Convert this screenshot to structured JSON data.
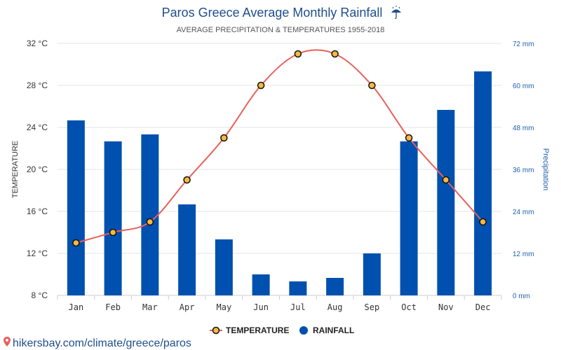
{
  "chart_data": {
    "type": "bar",
    "title": "Paros Greece Average Monthly Rainfall",
    "title_icon": "umbrella-icon",
    "subtitle": "AVERAGE PRECIPITATION & TEMPERATURES 1955-2018",
    "categories": [
      "Jan",
      "Feb",
      "Mar",
      "Apr",
      "May",
      "Jun",
      "Jul",
      "Aug",
      "Sep",
      "Oct",
      "Nov",
      "Dec"
    ],
    "series": [
      {
        "name": "TEMPERATURE",
        "type": "line",
        "axis": "left",
        "color": "#e8605a",
        "values": [
          13,
          14,
          15,
          19,
          23,
          28,
          31,
          31,
          28,
          23,
          19,
          15
        ]
      },
      {
        "name": "RAINFALL",
        "type": "bar",
        "axis": "right",
        "color": "#0050b0",
        "values": [
          50,
          44,
          46,
          26,
          16,
          6,
          4,
          5,
          12,
          44,
          53,
          64
        ]
      }
    ],
    "y_left": {
      "label": "TEMPERATURE",
      "min": 8,
      "max": 32,
      "ticks": [
        "8 °C",
        "12 °C",
        "16 °C",
        "20 °C",
        "24 °C",
        "28 °C",
        "32 °C"
      ]
    },
    "y_right": {
      "label": "Precipitation",
      "min": 0,
      "max": 72,
      "ticks": [
        "0 mm",
        "12 mm",
        "24 mm",
        "36 mm",
        "48 mm",
        "60 mm",
        "72 mm"
      ]
    },
    "grid": true,
    "legend_position": "bottom"
  },
  "footer": {
    "source": "hikersbay.com/climate/greece/paros",
    "icon": "location-pin-icon"
  }
}
